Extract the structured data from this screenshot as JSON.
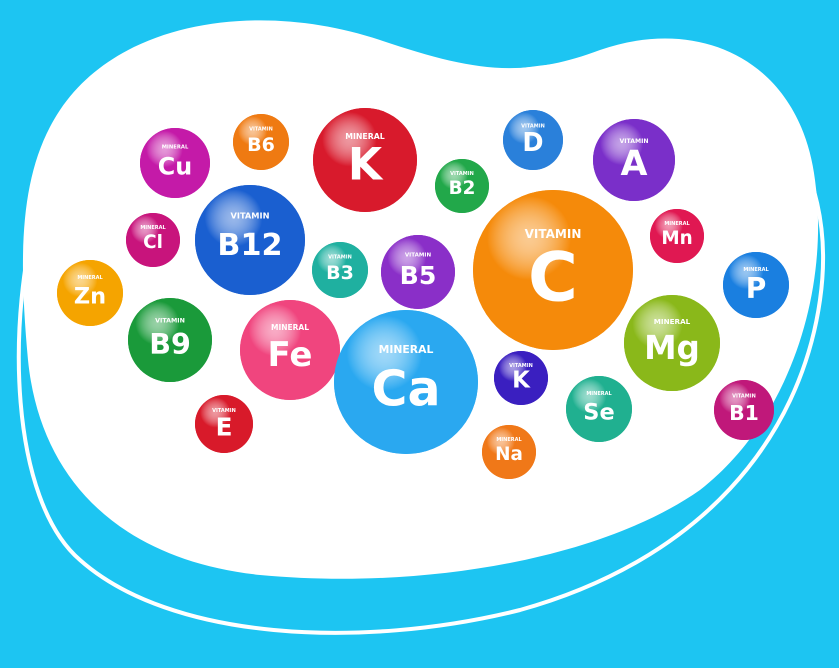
{
  "bubbles": [
    {
      "label": "MINERAL",
      "symbol": "Cu"
    },
    {
      "label": "VITAMIN",
      "symbol": "B6"
    },
    {
      "label": "MINERAL",
      "symbol": "K"
    },
    {
      "label": "VITAMIN",
      "symbol": "B2"
    },
    {
      "label": "VITAMIN",
      "symbol": "D"
    },
    {
      "label": "VITAMIN",
      "symbol": "A"
    },
    {
      "label": "VITAMIN",
      "symbol": "B12"
    },
    {
      "label": "MINERAL",
      "symbol": "Cl"
    },
    {
      "label": "VITAMIN",
      "symbol": "C"
    },
    {
      "label": "MINERAL",
      "symbol": "Mn"
    },
    {
      "label": "MINERAL",
      "symbol": "Zn"
    },
    {
      "label": "VITAMIN",
      "symbol": "B3"
    },
    {
      "label": "VITAMIN",
      "symbol": "B5"
    },
    {
      "label": "MINERAL",
      "symbol": "P"
    },
    {
      "label": "VITAMIN",
      "symbol": "B9"
    },
    {
      "label": "MINERAL",
      "symbol": "Fe"
    },
    {
      "label": "MINERAL",
      "symbol": "Ca"
    },
    {
      "label": "VITAMIN",
      "symbol": "K"
    },
    {
      "label": "MINERAL",
      "symbol": "Mg"
    },
    {
      "label": "MINERAL",
      "symbol": "Se"
    },
    {
      "label": "VITAMIN",
      "symbol": "B1"
    },
    {
      "label": "VITAMIN",
      "symbol": "E"
    },
    {
      "label": "MINERAL",
      "symbol": "Na"
    }
  ]
}
